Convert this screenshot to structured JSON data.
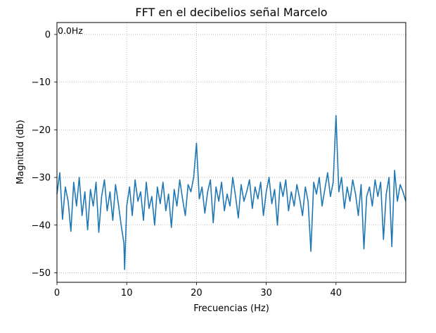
{
  "chart_data": {
    "type": "line",
    "title": "FFT en el decibelios señal Marcelo",
    "xlabel": "Frecuencias (Hz)",
    "ylabel": "Magnitud (db)",
    "xlim": [
      0,
      50
    ],
    "ylim": [
      -52,
      2.5
    ],
    "xticks": [
      0,
      10,
      20,
      30,
      40
    ],
    "xtick_labels": [
      "0",
      "10",
      "20",
      "30",
      "40"
    ],
    "yticks": [
      0,
      -10,
      -20,
      -30,
      -40,
      -50
    ],
    "ytick_labels": [
      "0",
      "−10",
      "−20",
      "−30",
      "−40",
      "−50"
    ],
    "grid": true,
    "grid_style": "dotted",
    "line_color": "#1f77b4",
    "annotation": {
      "text": "0.0Hz",
      "x": 0.0,
      "y": 0.0
    },
    "series": [
      {
        "x": [
          0.0,
          0.4,
          0.8,
          1.2,
          1.6,
          2.0,
          2.4,
          2.8,
          3.2,
          3.6,
          4.0,
          4.4,
          4.8,
          5.2,
          5.6,
          6.0,
          6.4,
          6.8,
          7.2,
          7.6,
          8.0,
          8.4,
          8.8,
          9.2,
          9.6,
          9.7,
          10.0,
          10.4,
          10.8,
          11.2,
          11.6,
          12.0,
          12.4,
          12.8,
          13.2,
          13.6,
          14.0,
          14.4,
          14.8,
          15.2,
          15.6,
          16.0,
          16.4,
          16.8,
          17.2,
          17.6,
          18.0,
          18.4,
          18.8,
          19.2,
          19.6,
          20.0,
          20.4,
          20.8,
          21.2,
          21.6,
          22.0,
          22.4,
          22.8,
          23.2,
          23.6,
          24.0,
          24.4,
          24.8,
          25.2,
          25.6,
          26.0,
          26.4,
          26.8,
          27.2,
          27.6,
          28.0,
          28.4,
          28.8,
          29.2,
          29.6,
          30.0,
          30.4,
          30.8,
          31.2,
          31.6,
          32.0,
          32.4,
          32.8,
          33.2,
          33.6,
          34.0,
          34.4,
          34.8,
          35.2,
          35.6,
          36.0,
          36.4,
          36.8,
          37.2,
          37.6,
          38.0,
          38.4,
          38.8,
          39.2,
          39.6,
          40.0,
          40.4,
          40.8,
          41.2,
          41.6,
          42.0,
          42.4,
          42.8,
          43.2,
          43.6,
          44.0,
          44.4,
          44.8,
          45.2,
          45.6,
          46.0,
          46.4,
          46.8,
          47.2,
          47.6,
          48.0,
          48.4,
          48.8,
          49.2,
          49.6,
          50.0
        ],
        "y": [
          -33.5,
          -29.0,
          -38.8,
          -32.0,
          -35.0,
          -41.3,
          -31.0,
          -36.0,
          -30.0,
          -38.0,
          -33.0,
          -41.0,
          -32.5,
          -36.0,
          -31.0,
          -41.5,
          -34.0,
          -30.5,
          -37.0,
          -33.0,
          -39.0,
          -31.5,
          -35.5,
          -40.0,
          -43.8,
          -49.3,
          -36.0,
          -32.0,
          -38.0,
          -30.5,
          -35.0,
          -33.0,
          -39.0,
          -31.0,
          -36.5,
          -34.0,
          -40.0,
          -32.0,
          -35.5,
          -31.0,
          -37.0,
          -33.5,
          -40.5,
          -32.5,
          -36.0,
          -30.5,
          -34.5,
          -38.0,
          -31.5,
          -33.0,
          -30.0,
          -22.8,
          -34.5,
          -32.0,
          -37.5,
          -33.0,
          -30.5,
          -39.5,
          -32.0,
          -35.0,
          -31.0,
          -37.0,
          -33.5,
          -36.0,
          -30.0,
          -34.0,
          -38.5,
          -31.5,
          -35.0,
          -33.0,
          -30.5,
          -36.5,
          -32.0,
          -34.5,
          -31.0,
          -38.0,
          -33.0,
          -30.0,
          -35.5,
          -32.5,
          -40.0,
          -31.0,
          -34.0,
          -30.5,
          -37.0,
          -33.0,
          -36.0,
          -31.5,
          -34.5,
          -38.0,
          -32.0,
          -35.0,
          -45.5,
          -31.0,
          -33.5,
          -30.0,
          -36.0,
          -32.5,
          -29.0,
          -34.0,
          -31.0,
          -17.0,
          -33.0,
          -30.0,
          -36.5,
          -32.0,
          -35.0,
          -30.5,
          -33.5,
          -38.0,
          -31.5,
          -45.0,
          -34.0,
          -32.0,
          -36.0,
          -30.5,
          -34.0,
          -31.0,
          -43.0,
          -33.5,
          -30.0,
          -44.5,
          -28.5,
          -35.0,
          -31.5,
          -33.0,
          -35.0
        ]
      }
    ]
  }
}
